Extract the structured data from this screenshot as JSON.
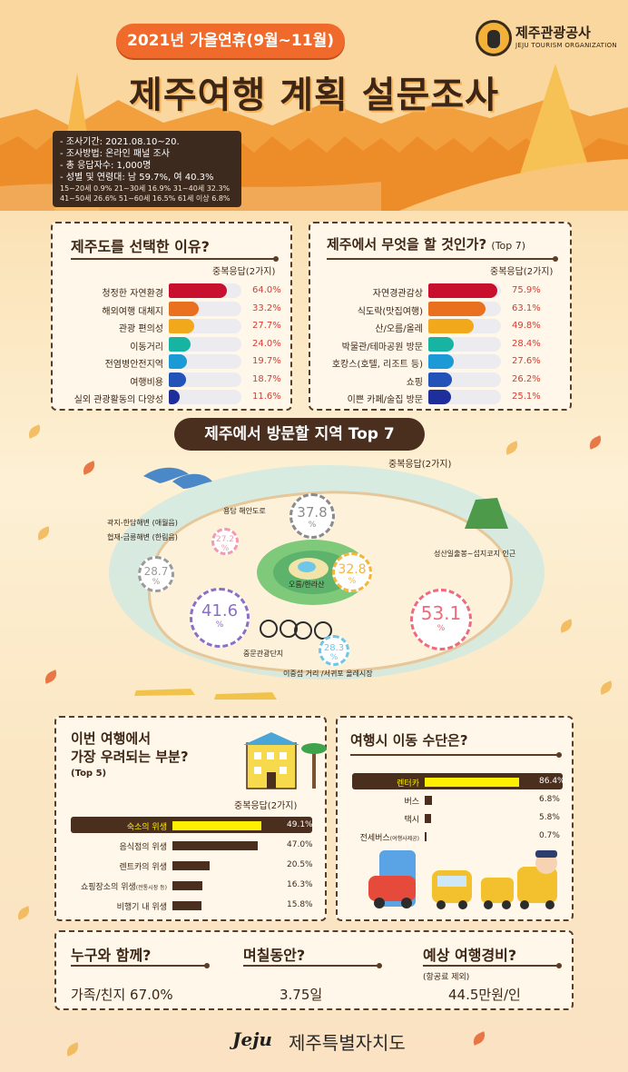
{
  "header": {
    "period": "2021년 가을연휴(9월~11월)",
    "title": "제주여행 계획 설문조사",
    "logo_name": "제주관광공사",
    "logo_sub": "JEJU TOURISM ORGANIZATION",
    "survey_lines": [
      "- 조사기간: 2021.08.10~20.",
      "- 조사방법: 온라인 패널 조사",
      "- 총 응답자수: 1,000명",
      "- 성별 및 연령대: 남 59.7%, 여 40.3%"
    ],
    "age_lines": [
      "15~20세 0.9% 21~30세 16.9% 31~40세 32.3%",
      "41~50세 26.6% 51~60세 16.5% 61세 이상 6.8%"
    ]
  },
  "colors": {
    "orange": "#ef6a2b",
    "brown": "#4a2f1e",
    "yellow_highlight": "#ffef00",
    "bar_palette": [
      "#c8102e",
      "#e8701f",
      "#f2a81b",
      "#17b3a3",
      "#1c9ad6",
      "#2353b8",
      "#1e2f9c"
    ]
  },
  "reasons": {
    "title": "제주도를 선택한 이유?",
    "note": "중복응답(2가지)"
  },
  "activities": {
    "title": "제주에서 무엇을 할 것인가?",
    "top": "(Top 7)",
    "note": "중복응답(2가지)"
  },
  "regions": {
    "title": "제주에서 방문할 지역 Top 7",
    "note": "중복응답(2가지)",
    "pct_symbol": "%"
  },
  "concerns": {
    "title_line1": "이번 여행에서",
    "title_line2": "가장 우려되는 부분?",
    "top": "(Top 5)",
    "note": "중복응답(2가지)"
  },
  "transport": {
    "title": "여행시 이동 수단은?"
  },
  "summary": {
    "companion_label": "누구와 함께?",
    "companion_value": "가족/친지 67.0%",
    "duration_label": "며칠동안?",
    "duration_value": "3.75일",
    "cost_label": "예상 여행경비?",
    "cost_note": "(항공료 제외)",
    "cost_value": "44.5만원/인"
  },
  "footer": {
    "logo": "Jeju",
    "name": "제주특별자치도"
  },
  "chart_data": [
    {
      "type": "bar",
      "orientation": "horizontal",
      "title": "제주도를 선택한 이유?",
      "categories": [
        "청정한 자연환경",
        "해외여행 대체지",
        "관광 편의성",
        "이동거리",
        "전염병안전지역",
        "여행비용",
        "실외 관광활동의 다양성"
      ],
      "values": [
        64.0,
        33.2,
        27.7,
        24.0,
        19.7,
        18.7,
        11.6
      ],
      "labels": [
        "64.0%",
        "33.2%",
        "27.7%",
        "24.0%",
        "19.7%",
        "18.7%",
        "11.6%"
      ],
      "unit": "%",
      "xlim": [
        0,
        100
      ]
    },
    {
      "type": "bar",
      "orientation": "horizontal",
      "title": "제주에서 무엇을 할 것인가? (Top 7)",
      "categories": [
        "자연경관감상",
        "식도락(맛집여행)",
        "산/오름/올레",
        "박물관/테마공원 방문",
        "호캉스(호텔, 리조트 등)",
        "쇼핑",
        "이쁜 카페/술집 방문"
      ],
      "values": [
        75.9,
        63.1,
        49.8,
        28.4,
        27.6,
        26.2,
        25.1
      ],
      "labels": [
        "75.9%",
        "63.1%",
        "49.8%",
        "28.4%",
        "27.6%",
        "26.2%",
        "25.1%"
      ],
      "unit": "%",
      "xlim": [
        0,
        100
      ]
    },
    {
      "type": "bubble",
      "title": "제주에서 방문할 지역 Top 7",
      "places": [
        {
          "name": "성산일출봉~섭지코지 인근",
          "value": 53.1
        },
        {
          "name": "중문관광단지",
          "value": 41.6
        },
        {
          "name": "용담 해안도로",
          "value": 37.8
        },
        {
          "name": "오름/한라산",
          "value": 32.8
        },
        {
          "name": "협재-금릉해변 (한림읍)",
          "value": 28.7
        },
        {
          "name": "이중섭 거리 /서귀포 올레시장",
          "value": 28.3
        },
        {
          "name": "곽지-한담해변 (애월읍)",
          "value": 27.2
        }
      ],
      "labels": [
        "53.1",
        "41.6",
        "37.8",
        "32.8",
        "28.7",
        "28.3",
        "27.2"
      ],
      "unit": "%"
    },
    {
      "type": "bar",
      "orientation": "horizontal",
      "title": "이번 여행에서 가장 우려되는 부분? (Top 5)",
      "categories": [
        "숙소의 위생",
        "음식점의 위생",
        "렌트카의 위생",
        "쇼핑장소의 위생",
        "비행기 내 위생"
      ],
      "category_notes": [
        "",
        "",
        "",
        "(전통시장 등)",
        ""
      ],
      "values": [
        49.1,
        47.0,
        20.5,
        16.3,
        15.8
      ],
      "labels": [
        "49.1%",
        "47.0%",
        "20.5%",
        "16.3%",
        "15.8%"
      ],
      "unit": "%",
      "xlim": [
        0,
        100
      ]
    },
    {
      "type": "bar",
      "orientation": "horizontal",
      "title": "여행시 이동 수단은?",
      "categories": [
        "렌터카",
        "버스",
        "택시",
        "전세버스"
      ],
      "category_notes": [
        "",
        "",
        "",
        "(여행사제공)"
      ],
      "values": [
        86.4,
        6.8,
        5.8,
        0.7
      ],
      "labels": [
        "86.4%",
        "6.8%",
        "5.8%",
        "0.7%"
      ],
      "unit": "%",
      "xlim": [
        0,
        100
      ]
    }
  ]
}
